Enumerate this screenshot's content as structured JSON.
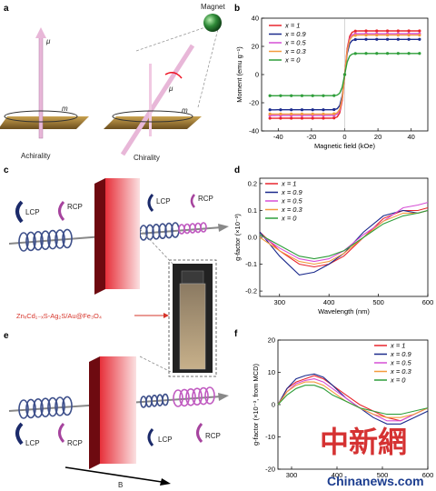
{
  "panels": {
    "a": {
      "letter": "a",
      "magnet_label": "Magnet",
      "mu_label": "μ",
      "m_label": "m",
      "achirality_label": "Achirality",
      "chirality_label": "Chirality"
    },
    "b": {
      "letter": "b"
    },
    "c": {
      "letter": "c",
      "lcp": "LCP",
      "rcp": "RCP",
      "material": "ZnₓCd₁₋ₓS-Ag₂S/Au@Fe₃O₄"
    },
    "d": {
      "letter": "d"
    },
    "e": {
      "letter": "e",
      "lcp": "LCP",
      "rcp": "RCP",
      "field": "B"
    },
    "f": {
      "letter": "f"
    }
  },
  "colors": {
    "x1": "#e8262d",
    "x09": "#1b2a8c",
    "x05": "#d64fd6",
    "x03": "#f39a3d",
    "x0": "#2e9e3a",
    "slab": "#b3121c",
    "coil_blue": "#3d4f8a",
    "coil_pink": "#c05ac0"
  },
  "watermark": "中新網",
  "watermark_url": "Chinanews.com",
  "chart_data": [
    {
      "id": "b",
      "type": "line",
      "xlabel": "Magnetic field (kOe)",
      "ylabel": "Moment (emu g⁻¹)",
      "xlim": [
        -50,
        50
      ],
      "ylim": [
        -40,
        40
      ],
      "xticks": [
        -40,
        -20,
        0,
        20,
        40
      ],
      "yticks": [
        -40,
        -20,
        0,
        20,
        40
      ],
      "legend_position": "top-left",
      "series": [
        {
          "name": "x = 1",
          "color": "#e8262d",
          "ms": 31
        },
        {
          "name": "x = 0.9",
          "color": "#1b2a8c",
          "ms": 25
        },
        {
          "name": "x = 0.5",
          "color": "#d64fd6",
          "ms": 29
        },
        {
          "name": "x = 0.3",
          "color": "#f39a3d",
          "ms": 28
        },
        {
          "name": "x = 0",
          "color": "#2e9e3a",
          "ms": 15
        }
      ]
    },
    {
      "id": "d",
      "type": "line",
      "xlabel": "Wavelength (nm)",
      "ylabel": "g-factor (×10⁻³)",
      "xlim": [
        260,
        600
      ],
      "ylim": [
        -0.22,
        0.22
      ],
      "xticks": [
        300,
        400,
        500,
        600
      ],
      "yticks": [
        -0.2,
        -0.1,
        0.0,
        0.1,
        0.2
      ],
      "ytick_labels": [
        "-0.2",
        "-0.1",
        "0.0",
        "0.1",
        "0.2"
      ],
      "legend_position": "top-left",
      "series": [
        {
          "name": "x = 1",
          "color": "#e8262d",
          "x": [
            260,
            300,
            340,
            370,
            400,
            430,
            470,
            510,
            550,
            580,
            600
          ],
          "y": [
            0.02,
            -0.05,
            -0.1,
            -0.11,
            -0.1,
            -0.07,
            0.0,
            0.07,
            0.1,
            0.1,
            0.11
          ]
        },
        {
          "name": "x = 0.9",
          "color": "#1b2a8c",
          "x": [
            260,
            300,
            340,
            370,
            400,
            430,
            470,
            510,
            550,
            580,
            600
          ],
          "y": [
            0.02,
            -0.07,
            -0.14,
            -0.13,
            -0.1,
            -0.06,
            0.02,
            0.08,
            0.1,
            0.09,
            0.1
          ]
        },
        {
          "name": "x = 0.5",
          "color": "#d64fd6",
          "x": [
            260,
            300,
            340,
            370,
            400,
            430,
            470,
            510,
            550,
            580,
            600
          ],
          "y": [
            0.01,
            -0.04,
            -0.08,
            -0.09,
            -0.08,
            -0.05,
            0.01,
            0.06,
            0.11,
            0.12,
            0.13
          ]
        },
        {
          "name": "x = 0.3",
          "color": "#f39a3d",
          "x": [
            260,
            300,
            340,
            370,
            400,
            430,
            470,
            510,
            550,
            580,
            600
          ],
          "y": [
            0.0,
            -0.05,
            -0.09,
            -0.1,
            -0.09,
            -0.06,
            0.0,
            0.06,
            0.09,
            0.09,
            0.1
          ]
        },
        {
          "name": "x = 0",
          "color": "#2e9e3a",
          "x": [
            260,
            300,
            340,
            370,
            400,
            430,
            470,
            510,
            550,
            580,
            600
          ],
          "y": [
            0.01,
            -0.03,
            -0.07,
            -0.08,
            -0.07,
            -0.05,
            0.0,
            0.05,
            0.08,
            0.09,
            0.1
          ]
        }
      ]
    },
    {
      "id": "f",
      "type": "line",
      "xlabel": "",
      "ylabel": "g-factor (×10⁻³, from MCD)",
      "xlim": [
        270,
        600
      ],
      "ylim": [
        -20,
        20
      ],
      "xticks": [
        300,
        400,
        500,
        600
      ],
      "xtick_labels": [
        "300",
        "400",
        "500",
        "600"
      ],
      "yticks": [
        -20,
        -10,
        0,
        10,
        20
      ],
      "legend_position": "top-right",
      "series": [
        {
          "name": "x = 1",
          "color": "#e8262d",
          "x": [
            270,
            290,
            310,
            330,
            350,
            370,
            390,
            420,
            450,
            480,
            510,
            540,
            570,
            600
          ],
          "y": [
            0,
            5,
            7,
            8,
            9,
            8,
            6,
            3,
            0,
            -2,
            -4,
            -5,
            -3,
            -1
          ]
        },
        {
          "name": "x = 0.9",
          "color": "#1b2a8c",
          "x": [
            270,
            290,
            310,
            330,
            350,
            370,
            390,
            420,
            450,
            480,
            510,
            540,
            570,
            600
          ],
          "y": [
            0,
            5,
            8,
            9,
            9.5,
            8.5,
            6,
            2,
            -1,
            -4,
            -6,
            -6,
            -4,
            -2
          ]
        },
        {
          "name": "x = 0.5",
          "color": "#d64fd6",
          "x": [
            270,
            290,
            310,
            330,
            350,
            370,
            390,
            420,
            450,
            480,
            510,
            540,
            570,
            600
          ],
          "y": [
            0,
            4,
            6.5,
            7.5,
            8,
            7,
            5,
            2,
            -1,
            -3,
            -5,
            -5,
            -3,
            -1
          ]
        },
        {
          "name": "x = 0.3",
          "color": "#f39a3d",
          "x": [
            270,
            290,
            310,
            330,
            350,
            370,
            390,
            420,
            450,
            480,
            510,
            540,
            570,
            600
          ],
          "y": [
            0,
            4,
            6,
            7,
            7,
            6,
            4,
            1,
            -1,
            -3,
            -4,
            -4,
            -3,
            -1
          ]
        },
        {
          "name": "x = 0",
          "color": "#2e9e3a",
          "x": [
            270,
            290,
            310,
            330,
            350,
            370,
            390,
            420,
            450,
            480,
            510,
            540,
            570,
            600
          ],
          "y": [
            0,
            3,
            5,
            6,
            6,
            5,
            3,
            1,
            -1,
            -2,
            -3,
            -3,
            -2,
            -1
          ]
        }
      ]
    }
  ]
}
